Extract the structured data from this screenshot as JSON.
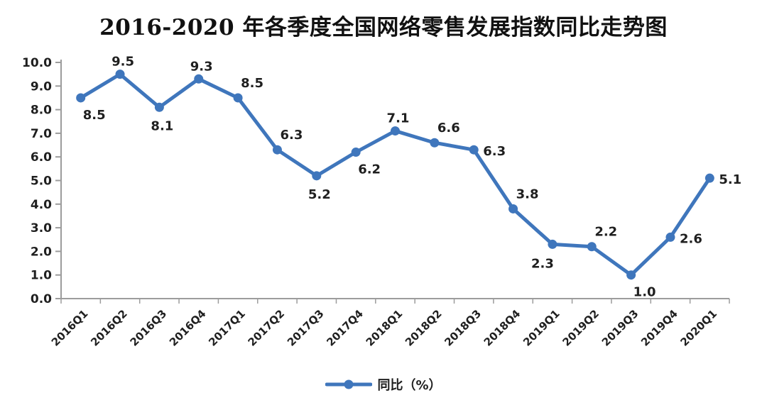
{
  "title": "2016-2020 年各季度全国网络零售发展指数同比走势图",
  "chart_data": {
    "type": "line",
    "title": "2016-2020 年各季度全国网络零售发展指数同比走势图",
    "categories": [
      "2016Q1",
      "2016Q2",
      "2016Q3",
      "2016Q4",
      "2017Q1",
      "2017Q2",
      "2017Q3",
      "2017Q4",
      "2018Q1",
      "2018Q2",
      "2018Q3",
      "2018Q4",
      "2019Q1",
      "2019Q2",
      "2019Q3",
      "2019Q4",
      "2020Q1"
    ],
    "series": [
      {
        "name": "同比（%）",
        "values": [
          8.5,
          9.5,
          8.1,
          9.3,
          8.5,
          6.3,
          5.2,
          6.2,
          7.1,
          6.6,
          6.3,
          3.8,
          2.3,
          2.2,
          1.0,
          2.6,
          5.1
        ]
      }
    ],
    "xlabel": "",
    "ylabel": "",
    "ylim": [
      0,
      10
    ],
    "ytick_labels": [
      "0.0",
      "1.0",
      "2.0",
      "3.0",
      "4.0",
      "5.0",
      "6.0",
      "7.0",
      "8.0",
      "9.0",
      "10.0"
    ],
    "grid": "off",
    "marker": "circle",
    "data_label_placements": [
      "below-right",
      "above",
      "below",
      "above",
      "above-right",
      "above-right",
      "below",
      "below-right",
      "above",
      "above-right",
      "right",
      "above-right",
      "below-left",
      "above-right",
      "below-right",
      "right",
      "right"
    ],
    "legend": {
      "position": "bottom-center",
      "label": "同比（%）"
    },
    "colors": {
      "line": "#3F76BC",
      "axis": "#9C9C9C",
      "tick_text": "#1F1F1F",
      "data_label_text": "#1F1F1F",
      "title_text": "#111111"
    }
  }
}
